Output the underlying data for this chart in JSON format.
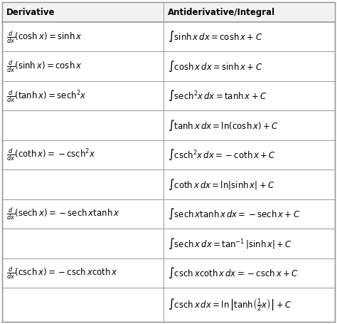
{
  "col_headers": [
    "Derivative",
    "Antiderivative/Integral"
  ],
  "grid_color": "#999999",
  "bg_color": "#ffffff",
  "text_color": "#000000",
  "col_split": 0.485,
  "rows": [
    {
      "left": "$\\frac{d}{dx}(\\cosh x) = \\sinh x$",
      "right": "$\\int \\sinh x\\,dx = \\cosh x + C$"
    },
    {
      "left": "$\\frac{d}{dx}(\\sinh x) = \\cosh x$",
      "right": "$\\int \\cosh x\\,dx = \\sinh x + C$"
    },
    {
      "left": "$\\frac{d}{dx}(\\tanh x) = \\mathrm{sech}^2 x$",
      "right": "$\\int \\mathrm{sech}^2 x\\,dx = \\tanh x + C$"
    },
    {
      "left": "",
      "right": "$\\int \\tanh x\\,dx = \\ln(\\cosh x) + C$"
    },
    {
      "left": "$\\frac{d}{dx}(\\coth x) = -\\mathrm{csch}^2 x$",
      "right": "$\\int \\mathrm{csch}^2 x\\,dx = -\\coth x + C$"
    },
    {
      "left": "",
      "right": "$\\int \\coth x\\,dx = \\ln|\\sinh x| + C$"
    },
    {
      "left": "$\\frac{d}{dx}(\\mathrm{sech}\\,x) = -\\mathrm{sech}\\,x\\tanh x$",
      "right": "$\\int \\mathrm{sech}\\,x\\tanh x\\,dx = -\\mathrm{sech}\\,x + C$"
    },
    {
      "left": "",
      "right": "$\\int \\mathrm{sech}\\,x\\,dx = \\tan^{-1}|\\sinh x| + C$"
    },
    {
      "left": "$\\frac{d}{dx}(\\mathrm{csch}\\,x) = -\\mathrm{csch}\\,x\\coth x$",
      "right": "$\\int \\mathrm{csch}\\,x\\coth x\\,dx = -\\mathrm{csch}\\,x + C$"
    },
    {
      "left": "",
      "right": "$\\int \\mathrm{csch}\\,x\\,dx = \\ln\\left|\\tanh\\!\\left(\\frac{1}{2}x\\right)\\right| + C$"
    }
  ],
  "row_heights": [
    1.0,
    1.0,
    1.0,
    1.0,
    1.0,
    1.0,
    1.0,
    1.0,
    1.0,
    1.15
  ],
  "font_size": 8.5,
  "header_font_size": 8.5
}
